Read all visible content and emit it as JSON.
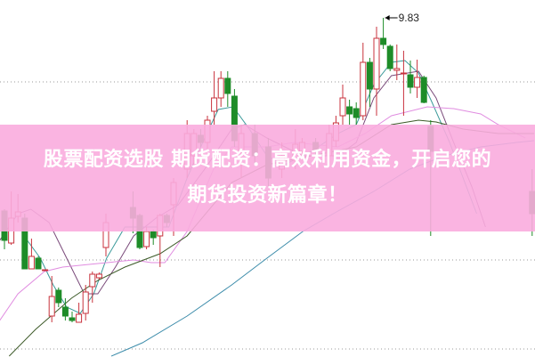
{
  "headline": {
    "line1": "股票配资选股 期货配资：高效利用资金，开启您的",
    "line2": "期货投资新篇章！"
  },
  "colors": {
    "up": "#c8323c",
    "down": "#1e8c28",
    "muted_down": "#8c8282",
    "banner": "#f9acde",
    "ma_teal": "#3a9a9a",
    "ma_purple": "#7a4a7a",
    "ma_pink": "#e08ce0",
    "ma_olive": "#3c5a28",
    "ma_blue": "#3c8caa",
    "grid": "#999999"
  },
  "chart_data": {
    "type": "candlestick",
    "grid": "horizontal dotted",
    "annotation": {
      "label": "9.83",
      "bar": 56
    },
    "candles": [
      [
        0,
        7.66,
        7.68,
        7.23,
        7.33
      ],
      [
        1,
        7.3,
        7.88,
        7.28,
        7.58
      ],
      [
        2,
        7.6,
        7.85,
        7.53,
        7.65
      ],
      [
        3,
        7.58,
        7.63,
        7.01,
        7.01
      ],
      [
        4,
        7.01,
        7.35,
        7.01,
        7.15
      ],
      [
        5,
        7.13,
        7.15,
        7.01,
        7.01
      ],
      [
        6,
        7.0,
        7.0,
        7.0,
        7.0
      ],
      [
        7,
        6.48,
        6.93,
        6.41,
        6.7
      ],
      [
        8,
        6.77,
        6.8,
        6.58,
        6.63
      ],
      [
        9,
        6.58,
        6.68,
        6.43,
        6.48
      ],
      [
        10,
        6.46,
        6.53,
        6.41,
        6.43
      ],
      [
        11,
        6.41,
        6.63,
        6.41,
        6.5
      ],
      [
        12,
        6.51,
        6.83,
        6.43,
        6.75
      ],
      [
        13,
        6.81,
        6.98,
        6.63,
        6.95
      ],
      [
        14,
        6.91,
        6.97,
        6.89,
        6.95
      ],
      [
        15,
        7.25,
        7.63,
        7.15,
        7.53
      ],
      [
        19,
        7.7,
        7.88,
        7.41,
        7.58
      ],
      [
        20,
        7.61,
        7.63,
        7.23,
        7.25
      ],
      [
        21,
        7.26,
        7.48,
        7.23,
        7.43
      ],
      [
        22,
        7.43,
        7.45,
        7.28,
        7.36
      ],
      [
        23,
        7.38,
        7.63,
        7.03,
        7.61
      ],
      [
        24,
        7.61,
        7.63,
        7.48,
        7.53
      ],
      [
        25,
        7.73,
        8.03,
        7.38,
        7.98
      ],
      [
        27,
        8.13,
        8.68,
        8.03,
        8.53
      ],
      [
        28,
        8.28,
        8.58,
        8.18,
        8.53
      ],
      [
        29,
        8.51,
        8.58,
        8.38,
        8.43
      ],
      [
        30,
        8.43,
        8.73,
        8.33,
        8.68
      ],
      [
        31,
        8.78,
        9.23,
        8.63,
        8.93
      ],
      [
        32,
        8.93,
        9.23,
        8.83,
        9.15
      ],
      [
        33,
        9.15,
        9.23,
        8.83,
        8.98
      ],
      [
        34,
        8.95,
        9.03,
        8.38,
        8.45
      ],
      [
        35,
        8.33,
        8.63,
        8.03,
        8.53
      ],
      [
        37,
        8.53,
        8.63,
        8.18,
        8.28
      ],
      [
        39,
        8.38,
        8.48,
        7.93,
        8.03
      ],
      [
        41,
        8.13,
        8.43,
        8.03,
        8.28
      ],
      [
        43,
        8.23,
        8.58,
        8.13,
        8.41
      ],
      [
        44,
        8.33,
        8.48,
        8.23,
        8.43
      ],
      [
        46,
        8.43,
        8.48,
        8.28,
        8.33
      ],
      [
        48,
        8.28,
        8.63,
        8.18,
        8.53
      ],
      [
        49,
        8.45,
        8.73,
        8.38,
        8.65
      ],
      [
        50,
        8.73,
        9.08,
        8.63,
        8.93
      ],
      [
        51,
        8.83,
        8.91,
        8.63,
        8.75
      ],
      [
        52,
        8.81,
        8.88,
        8.63,
        8.71
      ],
      [
        53,
        8.73,
        9.55,
        8.68,
        9.33
      ],
      [
        54,
        9.33,
        9.38,
        8.83,
        9.03
      ],
      [
        55,
        9.03,
        9.73,
        8.73,
        9.6
      ],
      [
        56,
        9.6,
        9.83,
        9.48,
        9.53
      ],
      [
        57,
        9.51,
        9.53,
        9.23,
        9.26
      ],
      [
        58,
        9.24,
        9.53,
        9.13,
        9.26
      ],
      [
        59,
        9.2,
        9.46,
        8.73,
        9.21
      ],
      [
        60,
        9.19,
        9.35,
        8.98,
        9.05
      ],
      [
        61,
        9.05,
        9.36,
        8.93,
        9.16
      ],
      [
        62,
        9.16,
        9.18,
        8.87,
        8.88
      ],
      [
        63,
        8.61,
        8.68,
        7.38,
        8.33
      ],
      [
        78,
        7.88,
        8.13,
        7.38,
        7.63
      ]
    ],
    "moving_averages": [
      {
        "color_key": "ma_teal",
        "points": [
          [
            2.6,
            7.41
          ],
          [
            5.3,
            7.13
          ],
          [
            7.2,
            6.83
          ],
          [
            9.2,
            6.58
          ],
          [
            11.2,
            6.51
          ],
          [
            13.2,
            6.73
          ],
          [
            15.1,
            7.13
          ],
          [
            17.8,
            7.48
          ],
          [
            20.4,
            7.48
          ],
          [
            24.3,
            7.48
          ],
          [
            27,
            8.03
          ],
          [
            29.6,
            8.48
          ],
          [
            31.6,
            8.8
          ],
          [
            33.8,
            8.83
          ],
          [
            36.2,
            8.58
          ],
          [
            38.8,
            8.28
          ],
          [
            41.4,
            8.18
          ],
          [
            45.4,
            8.33
          ],
          [
            49.3,
            8.53
          ],
          [
            52,
            8.63
          ],
          [
            54.6,
            9.08
          ],
          [
            57.2,
            9.33
          ],
          [
            59.2,
            9.35
          ],
          [
            61.2,
            9.21
          ],
          [
            63.2,
            8.88
          ],
          [
            65.8,
            8.43
          ],
          [
            67.8,
            8.03
          ],
          [
            69.8,
            7.63
          ]
        ]
      },
      {
        "color_key": "ma_purple",
        "points": [
          [
            -0.7,
            7.33
          ],
          [
            2.0,
            7.63
          ],
          [
            3.9,
            7.68
          ],
          [
            6.6,
            7.53
          ],
          [
            9.2,
            7.13
          ],
          [
            11.8,
            6.73
          ],
          [
            13.8,
            6.73
          ],
          [
            16.4,
            7.03
          ],
          [
            19.1,
            7.38
          ],
          [
            22.4,
            7.58
          ],
          [
            25.7,
            7.73
          ],
          [
            29.6,
            8.13
          ],
          [
            33.6,
            8.58
          ],
          [
            35.5,
            8.63
          ],
          [
            38.8,
            8.48
          ],
          [
            44.1,
            8.28
          ],
          [
            49.3,
            8.28
          ],
          [
            52.0,
            8.43
          ],
          [
            54.6,
            8.93
          ],
          [
            57.2,
            9.18
          ],
          [
            61.2,
            9.23
          ],
          [
            63.8,
            8.93
          ],
          [
            66.4,
            8.43
          ],
          [
            69.1,
            7.93
          ],
          [
            71.1,
            7.48
          ]
        ]
      },
      {
        "color_key": "ma_pink",
        "points": [
          [
            -0.7,
            6.43
          ],
          [
            2.0,
            6.73
          ],
          [
            5.9,
            6.98
          ],
          [
            8.6,
            7.03
          ],
          [
            12.5,
            7.06
          ],
          [
            19.1,
            7.11
          ],
          [
            21.7,
            7.08
          ],
          [
            23.7,
            7.08
          ],
          [
            27.0,
            7.43
          ],
          [
            30.9,
            8.13
          ],
          [
            33.6,
            8.38
          ],
          [
            38.8,
            8.38
          ],
          [
            42.8,
            8.43
          ],
          [
            49.3,
            8.38
          ],
          [
            53.3,
            8.53
          ],
          [
            57.2,
            8.73
          ],
          [
            62.5,
            8.83
          ],
          [
            66.4,
            8.81
          ],
          [
            70.4,
            8.75
          ],
          [
            73.0,
            8.63
          ],
          [
            77.0,
            8.48
          ]
        ]
      },
      {
        "color_key": "ma_olive",
        "points": [
          [
            0.7,
            6.03
          ],
          [
            4.6,
            6.33
          ],
          [
            9.9,
            6.68
          ],
          [
            13.8,
            6.88
          ],
          [
            17.8,
            7.03
          ],
          [
            23.0,
            7.18
          ],
          [
            27.0,
            7.38
          ],
          [
            33.6,
            7.98
          ],
          [
            38.8,
            8.18
          ],
          [
            45.4,
            8.28
          ],
          [
            52.0,
            8.38
          ],
          [
            57.2,
            8.63
          ],
          [
            61.2,
            8.68
          ],
          [
            63.8,
            8.66
          ],
          [
            67.8,
            8.58
          ],
          [
            73.0,
            8.53
          ],
          [
            78.3,
            8.53
          ]
        ]
      },
      {
        "color_key": "ma_blue",
        "points": [
          [
            15.8,
            6.03
          ],
          [
            20.4,
            6.18
          ],
          [
            27.0,
            6.48
          ],
          [
            33.6,
            6.83
          ],
          [
            38.8,
            7.13
          ],
          [
            44.1,
            7.43
          ],
          [
            49.3,
            7.66
          ],
          [
            54.6,
            7.88
          ],
          [
            59.9,
            8.13
          ],
          [
            65.1,
            8.28
          ],
          [
            70.4,
            8.38
          ],
          [
            75.7,
            8.43
          ],
          [
            78.3,
            8.45
          ]
        ]
      }
    ],
    "gridlines": [
      9.11,
      7.11,
      6.11
    ]
  }
}
